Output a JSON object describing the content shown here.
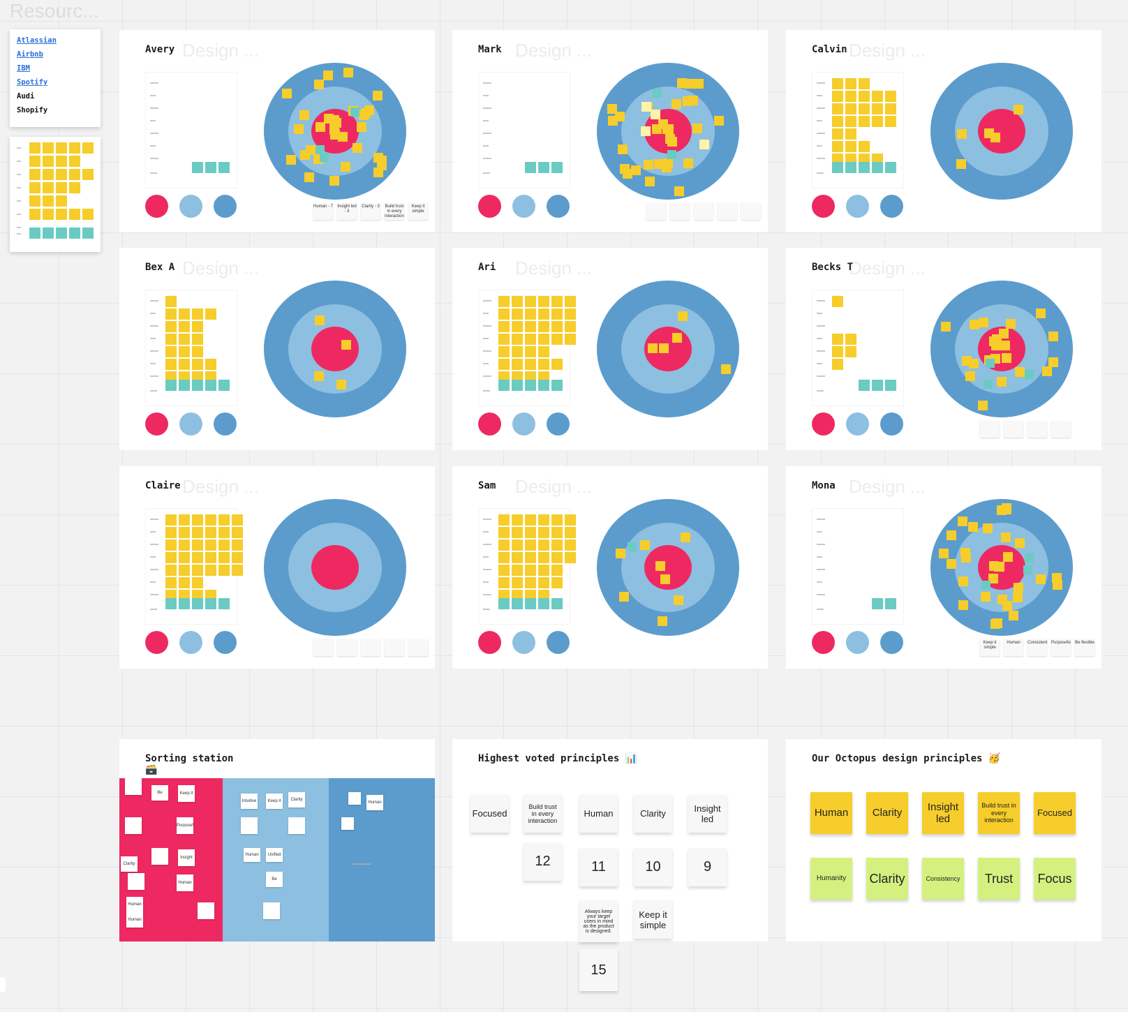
{
  "resources": {
    "ghost_title": "Resourc...",
    "links": [
      {
        "label": "Atlassian",
        "style": "blue"
      },
      {
        "label": "Airbnb",
        "style": "blue"
      },
      {
        "label": "IBM",
        "style": "blue"
      },
      {
        "label": "Spotify",
        "style": "blue"
      },
      {
        "label": "Audi",
        "style": "dark"
      },
      {
        "label": "Shopify",
        "style": "dark"
      }
    ]
  },
  "ghost_label": "Design ...",
  "frames": [
    {
      "name": "Avery",
      "chart": [
        0,
        0,
        0,
        0,
        0,
        0,
        0
      ],
      "teal": 3,
      "target": {
        "outer": 12,
        "middle": 12,
        "inner": 8,
        "teal": 3,
        "pale": 0
      },
      "notes": [
        "Human - 7",
        "Insight led - 3",
        "Clarity - 3",
        "Build trust in every interaction",
        "Keep it simple"
      ]
    },
    {
      "name": "Mark",
      "chart": [
        0,
        0,
        0,
        0,
        0,
        0,
        0
      ],
      "teal": 3,
      "target": {
        "outer": 13,
        "middle": 10,
        "inner": 6,
        "teal": 2,
        "pale": 4
      },
      "notes": [
        "",
        "",
        "",
        "",
        ""
      ]
    },
    {
      "name": "Calvin",
      "chart": [
        3,
        5,
        5,
        5,
        2,
        3,
        4
      ],
      "teal": 5,
      "target": {
        "outer": 1,
        "middle": 2,
        "inner": 2,
        "teal": 0,
        "pale": 0
      },
      "notes": []
    },
    {
      "name": "Bex A",
      "chart": [
        1,
        4,
        3,
        3,
        3,
        4,
        4
      ],
      "teal": 5,
      "target": {
        "outer": 0,
        "middle": 3,
        "inner": 1,
        "teal": 0,
        "pale": 0
      },
      "notes": []
    },
    {
      "name": "Ari",
      "chart": [
        6,
        6,
        6,
        6,
        4,
        5,
        4
      ],
      "teal": 5,
      "target": {
        "outer": 1,
        "middle": 1,
        "inner": 3,
        "teal": 0,
        "pale": 0
      },
      "notes": []
    },
    {
      "name": "Becks T",
      "chart": [
        1,
        0,
        0,
        2,
        2,
        1,
        0
      ],
      "teal": 3,
      "target": {
        "outer": 6,
        "middle": 8,
        "inner": 9,
        "teal": 3,
        "pale": 0
      },
      "notes": [
        "",
        "",
        "",
        ""
      ]
    },
    {
      "name": "Claire",
      "chart": [
        6,
        6,
        6,
        6,
        6,
        3,
        4
      ],
      "teal": 5,
      "target": {
        "outer": 0,
        "middle": 0,
        "inner": 0,
        "teal": 0,
        "pale": 0
      },
      "notes": [
        "",
        "",
        "",
        "",
        ""
      ]
    },
    {
      "name": "Sam",
      "chart": [
        6,
        6,
        6,
        6,
        5,
        5,
        4
      ],
      "teal": 5,
      "target": {
        "outer": 3,
        "middle": 3,
        "inner": 2,
        "teal": 1,
        "pale": 0
      },
      "notes": []
    },
    {
      "name": "Mona",
      "chart": [
        0,
        0,
        0,
        0,
        0,
        0,
        0
      ],
      "teal": 2,
      "target": {
        "outer": 14,
        "middle": 12,
        "inner": 5,
        "teal": 3,
        "pale": 0
      },
      "notes": [
        "Keep it simple",
        "Human",
        "Consistent",
        "Purposeful",
        "Be flexible"
      ]
    }
  ],
  "sorting": {
    "title": "Sorting station",
    "emoji": "🗃️",
    "notes_left": [
      "Be flexible",
      "Keep it simple",
      "Purposeful",
      "Clarity",
      "Insight led",
      "Human",
      "Human",
      "Human"
    ],
    "notes_mid": [
      "Intuitive",
      "Keep it simple",
      "Clarity",
      "Human",
      "Unified",
      "Be flexible"
    ],
    "notes_right": [
      "Human"
    ]
  },
  "voted": {
    "title": "Highest voted principles",
    "emoji": "📊",
    "principles": [
      "Focused",
      "Build trust in every interaction",
      "Human",
      "Clarity",
      "Insight led"
    ],
    "counts": [
      "12",
      "11",
      "10",
      "9"
    ],
    "extra": [
      "Always keep your target users in mind as the product is designed.",
      "Keep it simple"
    ],
    "extra_count": "15"
  },
  "octopus": {
    "title": "Our Octopus design principles",
    "emoji": "🥳",
    "row1": [
      "Human",
      "Clarity",
      "Insight led",
      "Build trust in every interaction",
      "Focused"
    ],
    "row2": [
      "Humanity",
      "Clarity",
      "Consistency",
      "Trust",
      "Focus"
    ]
  },
  "colors": {
    "pink": "#ee2961",
    "light_blue": "#8dbfe0",
    "blue": "#5b9ccd",
    "yellow": "#f6cd2a",
    "teal": "#6acbc2",
    "green": "#d4f17f"
  }
}
